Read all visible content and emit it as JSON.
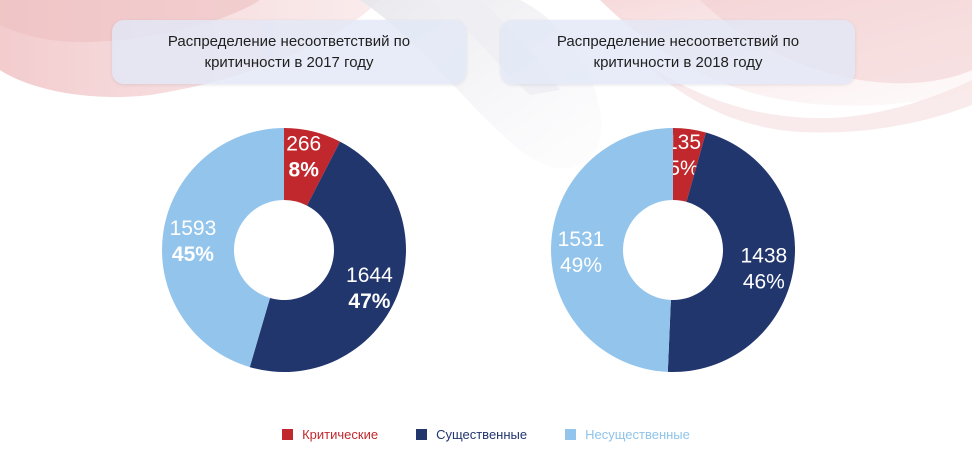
{
  "colors": {
    "critical": "#c0282d",
    "significant": "#22366e",
    "insignificant": "#93c5ec"
  },
  "legend": [
    {
      "label": "Критические",
      "color": "#c0282d",
      "text_color": "#c0282d"
    },
    {
      "label": "Существенные",
      "color": "#22366e",
      "text_color": "#22366e"
    },
    {
      "label": "Несущественные",
      "color": "#93c5ec",
      "text_color": "#8fc3ea"
    }
  ],
  "chart_data": [
    {
      "type": "pie",
      "title": "Распределение несоответствий по критичности в 2017 году",
      "categories": [
        "Критические",
        "Существенные",
        "Несущественные"
      ],
      "values": [
        266,
        1644,
        1593
      ],
      "percent_labels": [
        "8%",
        "47%",
        "45%"
      ],
      "value_labels": [
        "266",
        "1644",
        "1593"
      ],
      "donut": true,
      "legend_position": "bottom",
      "bold_percent": true
    },
    {
      "type": "pie",
      "title": "Распределение несоответствий по критичности в 2018 году",
      "categories": [
        "Критические",
        "Существенные",
        "Несущественные"
      ],
      "values": [
        135,
        1438,
        1531
      ],
      "percent_labels": [
        "5%",
        "46%",
        "49%"
      ],
      "value_labels": [
        "135",
        "1438",
        "1531"
      ],
      "donut": true,
      "legend_position": "bottom",
      "bold_percent": false
    }
  ]
}
